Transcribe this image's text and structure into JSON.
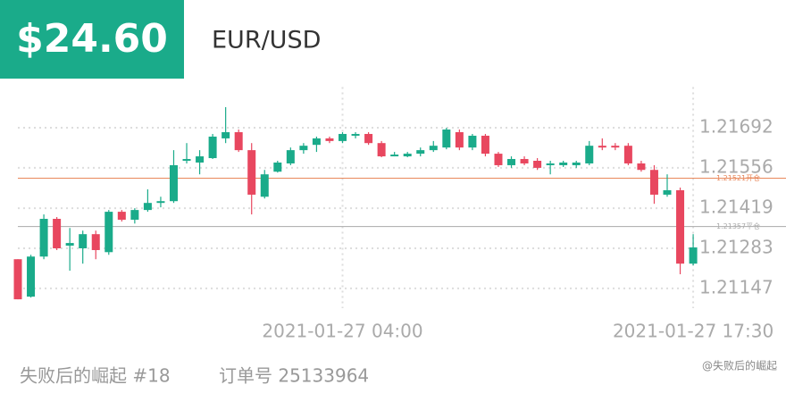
{
  "header": {
    "price": "$24.60",
    "symbol": "EUR/USD"
  },
  "footer": {
    "account": "失败后的崛起 #18",
    "order": "订单号 25133964",
    "watermark": "@失败后的崛起"
  },
  "chart_data": {
    "type": "candlestick",
    "categories": [
      null,
      null,
      null,
      null,
      null,
      null,
      null,
      null,
      null,
      null,
      null,
      null,
      null,
      null,
      null,
      null,
      null,
      null,
      null,
      null,
      null,
      null,
      null,
      null,
      null,
      "2021-01-27 04:00",
      null,
      null,
      null,
      null,
      null,
      null,
      null,
      null,
      null,
      null,
      null,
      null,
      null,
      null,
      null,
      null,
      null,
      null,
      null,
      null,
      null,
      null,
      null,
      null,
      null,
      null,
      "2021-01-27 17:30"
    ],
    "open": [
      1.21246,
      1.21119,
      1.21255,
      1.21383,
      1.21292,
      1.21283,
      1.21331,
      1.2127,
      1.21407,
      1.2138,
      1.21413,
      1.21437,
      1.21443,
      1.2158,
      1.21574,
      1.21589,
      1.21656,
      1.21677,
      1.21616,
      1.21458,
      1.21543,
      1.21571,
      1.21616,
      1.21634,
      1.21656,
      1.21647,
      1.21665,
      1.21671,
      1.2164,
      1.21595,
      1.21595,
      1.21604,
      1.21616,
      1.21625,
      1.21677,
      1.21625,
      1.21665,
      1.21604,
      1.21565,
      1.21586,
      1.2158,
      1.21565,
      1.21565,
      1.21565,
      1.21571,
      1.21631,
      1.21631,
      1.21631,
      1.21571,
      1.21549,
      1.21465,
      1.2148,
      1.21231
    ],
    "high": [
      1.21246,
      1.21261,
      1.21398,
      1.21389,
      1.21352,
      1.21343,
      1.21343,
      1.21413,
      1.21413,
      1.21419,
      1.21483,
      1.21458,
      1.21616,
      1.2164,
      1.21616,
      1.21671,
      1.21762,
      1.21686,
      1.2164,
      1.21549,
      1.2158,
      1.21625,
      1.2164,
      1.21662,
      1.21662,
      1.21677,
      1.21677,
      1.21677,
      1.21647,
      1.2161,
      1.2161,
      1.21625,
      1.21647,
      1.21692,
      1.21686,
      1.21671,
      1.21671,
      1.2161,
      1.21595,
      1.21595,
      1.21589,
      1.2158,
      1.2158,
      1.2158,
      1.21647,
      1.21656,
      1.2164,
      1.2164,
      1.2158,
      1.21565,
      1.21534,
      1.21489,
      1.21331
    ],
    "low": [
      1.2111,
      1.21116,
      1.21246,
      1.21277,
      1.21207,
      1.21231,
      1.21246,
      1.21261,
      1.21374,
      1.21367,
      1.21407,
      1.21422,
      1.21437,
      1.21571,
      1.21534,
      1.21586,
      1.2164,
      1.2161,
      1.21398,
      1.21452,
      1.2154,
      1.21565,
      1.21604,
      1.2161,
      1.2164,
      1.2164,
      1.21656,
      1.21634,
      1.21592,
      1.21595,
      1.21592,
      1.21595,
      1.2161,
      1.21619,
      1.21616,
      1.21616,
      1.21595,
      1.21559,
      1.21556,
      1.21565,
      1.21549,
      1.21534,
      1.21559,
      1.21556,
      1.21565,
      1.21616,
      1.21616,
      1.21565,
      1.21543,
      1.21434,
      1.21458,
      1.21195,
      1.21225
    ],
    "close": [
      1.2111,
      1.21255,
      1.21383,
      1.21283,
      1.21301,
      1.21331,
      1.21277,
      1.21407,
      1.2138,
      1.21413,
      1.21437,
      1.21443,
      1.21565,
      1.21586,
      1.21595,
      1.21662,
      1.21677,
      1.21616,
      1.21465,
      1.21534,
      1.21574,
      1.21616,
      1.21631,
      1.21656,
      1.21647,
      1.21671,
      1.21671,
      1.2164,
      1.21595,
      1.21601,
      1.21604,
      1.21616,
      1.21631,
      1.21686,
      1.21625,
      1.21665,
      1.21604,
      1.21565,
      1.21586,
      1.21571,
      1.21556,
      1.21571,
      1.21574,
      1.21574,
      1.21631,
      1.21625,
      1.21625,
      1.21571,
      1.21549,
      1.21465,
      1.2148,
      1.21231,
      1.21286
    ],
    "up_color": "#1aab8a",
    "down_color": "#e8475f",
    "ylim": [
      1.2108,
      1.2183
    ],
    "yticks": [
      1.21147,
      1.21283,
      1.21419,
      1.21556,
      1.21692
    ],
    "grid": true,
    "reference_lines": [
      {
        "value": 1.21521,
        "label": "1.21521开仓",
        "color": "#e8875a"
      },
      {
        "value": 1.21357,
        "label": "1.21357平仓",
        "color": "#aaaaaa"
      }
    ]
  }
}
